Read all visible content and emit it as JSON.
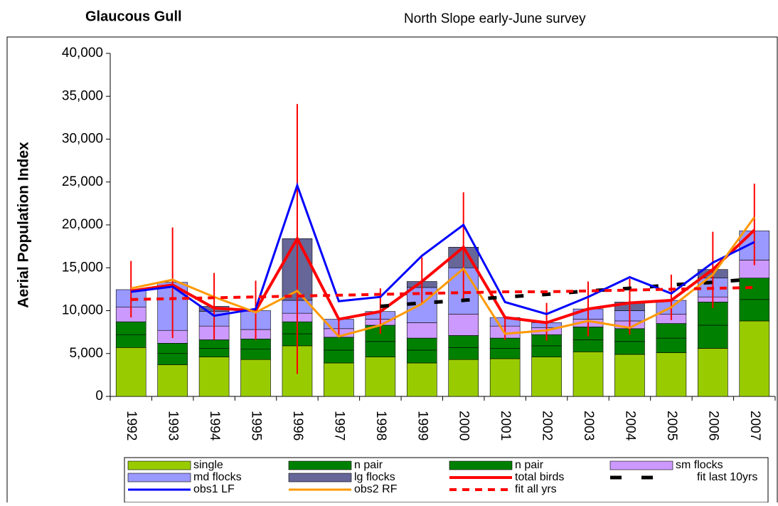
{
  "chart_data": {
    "type": "stacked-bar-line",
    "title": "Glaucous Gull",
    "subtitle": "North Slope early-June survey",
    "y_label": "Aerial Population Index",
    "categories": [
      "1992",
      "1993",
      "1994",
      "1995",
      "1996",
      "1997",
      "1998",
      "1999",
      "2000",
      "2001",
      "2002",
      "2003",
      "2004",
      "2005",
      "2006",
      "2007"
    ],
    "ylim": [
      0,
      40000
    ],
    "yticks": [
      0,
      {
        "value": 5000,
        "label": "5,000"
      },
      {
        "value": 10000,
        "label": "10,000"
      },
      {
        "value": 15000,
        "label": "15,000"
      },
      {
        "value": 20000,
        "label": "20,000"
      },
      {
        "value": 25000,
        "label": "25,000"
      },
      {
        "value": 30000,
        "label": "30,000"
      },
      {
        "value": 35000,
        "label": "35,000"
      },
      {
        "value": 40000,
        "label": "40,000"
      }
    ],
    "series": [
      {
        "name": "single",
        "kind": "bar",
        "color": "#99cc00",
        "values": [
          5700,
          3700,
          4600,
          4300,
          5900,
          3900,
          4600,
          3900,
          4300,
          4400,
          4600,
          5200,
          4900,
          5100,
          5600,
          8800
        ]
      },
      {
        "name": "n pair",
        "kind": "bar",
        "color": "#008000",
        "values": [
          1500,
          1300,
          1000,
          1200,
          1400,
          1500,
          1800,
          1500,
          1400,
          1200,
          1300,
          1400,
          1500,
          1700,
          2700,
          2500
        ]
      },
      {
        "name": "n pair",
        "kind": "bar",
        "color": "#008000",
        "values": [
          1500,
          1200,
          1000,
          1200,
          1400,
          1500,
          1900,
          1400,
          1400,
          1200,
          1300,
          1500,
          1500,
          1700,
          2700,
          2500
        ]
      },
      {
        "name": "sm flocks",
        "kind": "bar",
        "color": "#cc99ff",
        "values": [
          1700,
          1500,
          1600,
          1100,
          1000,
          1000,
          700,
          1800,
          2500,
          1400,
          800,
          900,
          900,
          1100,
          600,
          2100
        ]
      },
      {
        "name": "md flocks",
        "kind": "bar",
        "color": "#9999ff",
        "values": [
          2050,
          5600,
          1700,
          2200,
          1500,
          1100,
          900,
          4100,
          5400,
          1000,
          600,
          1200,
          1200,
          1600,
          2200,
          3400
        ]
      },
      {
        "name": "lg flocks",
        "kind": "bar",
        "color": "#666699",
        "values": [
          0,
          0,
          600,
          0,
          7200,
          0,
          0,
          700,
          2400,
          0,
          0,
          0,
          1000,
          0,
          1000,
          0
        ]
      },
      {
        "name": "total birds",
        "kind": "line",
        "color": "#ff0000",
        "width": 4,
        "dashed": false,
        "values": [
          12300,
          13000,
          10300,
          10000,
          18400,
          9000,
          9900,
          13400,
          17400,
          9200,
          8600,
          10200,
          10900,
          11200,
          14800,
          19400
        ],
        "ci_low": [
          9200,
          6800,
          6600,
          6600,
          2600,
          6900,
          7300,
          10900,
          11200,
          6600,
          6500,
          7000,
          7200,
          8900,
          10300,
          15300
        ],
        "ci_high": [
          15800,
          19700,
          14400,
          13500,
          34100,
          9000,
          12600,
          16200,
          23800,
          9200,
          10900,
          13400,
          13700,
          14200,
          19200,
          24800
        ]
      },
      {
        "name": "fit last 10yrs",
        "kind": "line",
        "color": "#000000",
        "width": 5,
        "dashed": true,
        "values": [
          null,
          null,
          null,
          null,
          null,
          null,
          10500,
          10900,
          11200,
          11600,
          11900,
          12300,
          12600,
          13000,
          13300,
          13700
        ]
      },
      {
        "name": "obs1 LF",
        "kind": "line",
        "color": "#0000ff",
        "width": 3,
        "dashed": false,
        "values": [
          12200,
          12800,
          9400,
          10200,
          24600,
          11100,
          11600,
          16400,
          20000,
          11000,
          9600,
          11600,
          13900,
          12000,
          15600,
          18000
        ]
      },
      {
        "name": "obs2 RF",
        "kind": "line",
        "color": "#ff9900",
        "width": 3,
        "dashed": false,
        "values": [
          12600,
          13600,
          11600,
          9800,
          12300,
          7000,
          8300,
          10800,
          14900,
          7300,
          7700,
          8800,
          8000,
          10400,
          14200,
          20900
        ]
      },
      {
        "name": "fit all yrs",
        "kind": "line",
        "color": "#ff0000",
        "width": 4,
        "dashed": true,
        "values": [
          11300,
          11400,
          11500,
          11600,
          11700,
          11800,
          11900,
          12000,
          12100,
          12200,
          12200,
          12300,
          12400,
          12500,
          12600,
          12700
        ]
      }
    ]
  }
}
